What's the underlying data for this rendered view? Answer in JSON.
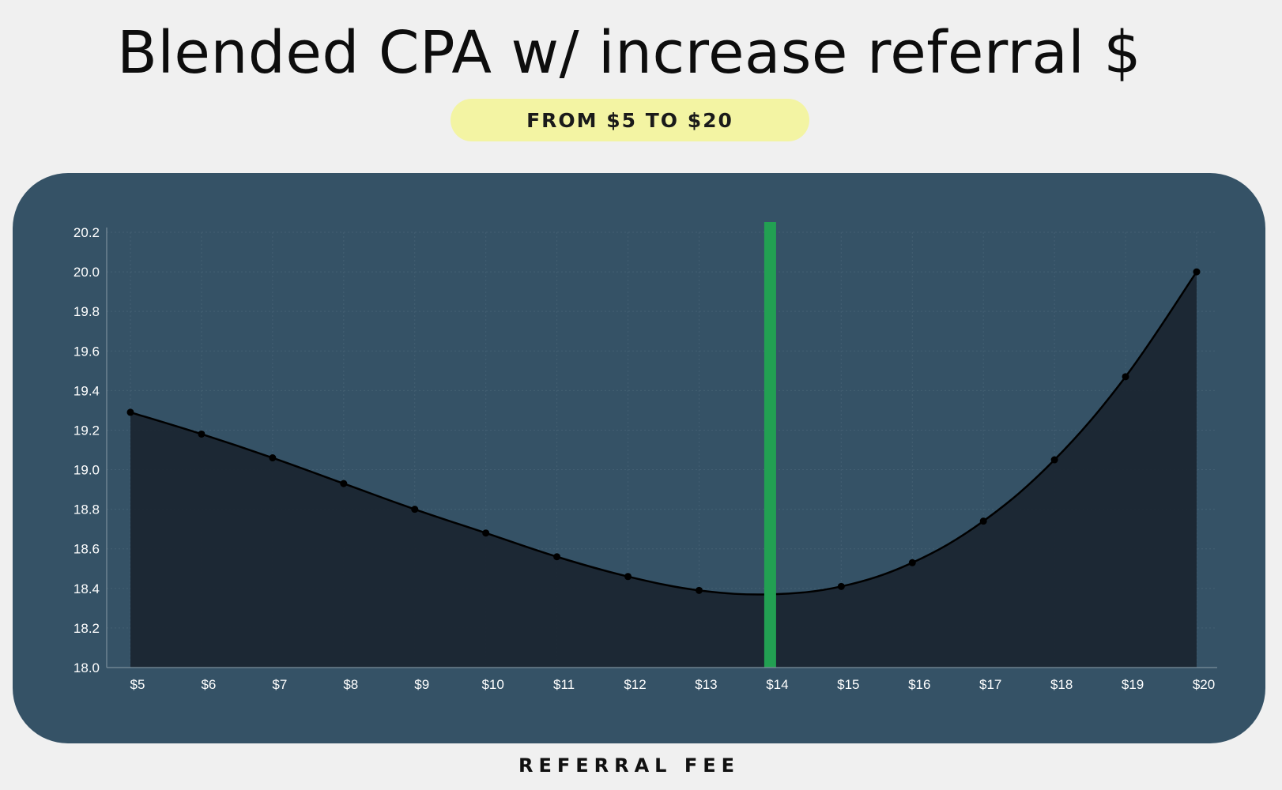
{
  "header": {
    "title": "Blended CPA w/ increase referral $",
    "subtitle": "FROM $5 TO $20"
  },
  "chart_data": {
    "type": "area",
    "title": "Blended CPA w/ increase referral $",
    "subtitle": "FROM $5 TO $20",
    "xlabel": "REFERRAL FEE",
    "ylabel": "",
    "categories": [
      "$5",
      "$6",
      "$7",
      "$8",
      "$9",
      "$10",
      "$11",
      "$12",
      "$13",
      "$14",
      "$15",
      "$16",
      "$17",
      "$18",
      "$19",
      "$20"
    ],
    "series": [
      {
        "values": [
          19.29,
          19.18,
          19.06,
          18.93,
          18.8,
          18.68,
          18.56,
          18.46,
          18.39,
          18.37,
          18.41,
          18.53,
          18.74,
          19.05,
          19.47,
          20.0
        ],
        "markers": [
          true,
          true,
          true,
          true,
          true,
          true,
          true,
          true,
          true,
          false,
          true,
          true,
          true,
          true,
          true,
          true
        ]
      }
    ],
    "ylim": [
      18.0,
      20.2
    ],
    "yticks": [
      "18.0",
      "18.2",
      "18.4",
      "18.6",
      "18.8",
      "19.0",
      "19.2",
      "19.4",
      "19.6",
      "19.8",
      "20.0",
      "20.2"
    ],
    "highlight_category": "$14",
    "grid": true,
    "colors": {
      "panel": "#355266",
      "area_fill": "#1b2631",
      "line": "#000000",
      "highlight": "#22a052",
      "grid": "#4a6578",
      "tick_text": "#ffffff"
    }
  }
}
